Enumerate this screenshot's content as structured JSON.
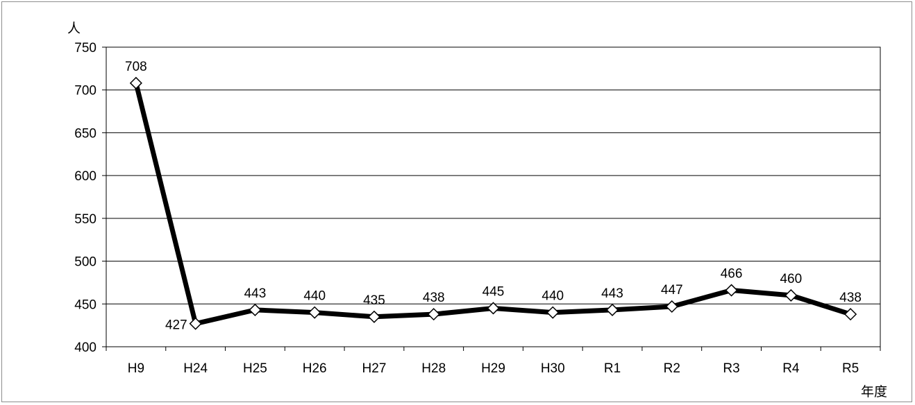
{
  "chart_data": {
    "type": "line",
    "y_unit_label": "人",
    "x_unit_label": "年度",
    "categories": [
      "H9",
      "H24",
      "H25",
      "H26",
      "H27",
      "H28",
      "H29",
      "H30",
      "R1",
      "R2",
      "R3",
      "R4",
      "R5"
    ],
    "series": [
      {
        "values": [
          708,
          427,
          443,
          440,
          435,
          438,
          445,
          440,
          443,
          447,
          466,
          460,
          438
        ]
      }
    ],
    "ylim": [
      400,
      750
    ],
    "yticks": [
      400,
      450,
      500,
      550,
      600,
      650,
      700,
      750
    ],
    "grid": true,
    "line_color": "#000000",
    "marker": "diamond",
    "marker_fill": "#ffffff"
  }
}
